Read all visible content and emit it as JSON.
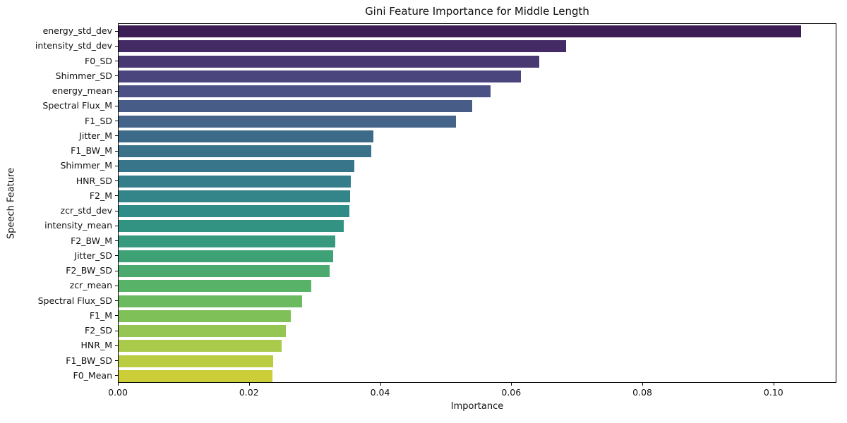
{
  "chart_data": {
    "type": "bar",
    "orientation": "horizontal",
    "title": "Gini Feature Importance for Middle Length",
    "xlabel": "Importance",
    "ylabel": "Speech Feature",
    "xlim": [
      0,
      0.1096
    ],
    "grid": false,
    "legend_position": "none",
    "xticks": [
      0,
      0.02,
      0.04,
      0.06,
      0.08,
      0.1
    ],
    "xtick_labels": [
      "0.00",
      "0.02",
      "0.04",
      "0.06",
      "0.08",
      "0.10"
    ],
    "categories": [
      "energy_std_dev",
      "intensity_std_dev",
      "F0_SD",
      "Shimmer_SD",
      "energy_mean",
      "Spectral Flux_M",
      "F1_SD",
      "Jitter_M",
      "F1_BW_M",
      "Shimmer_M",
      "HNR_SD",
      "F2_M",
      "zcr_std_dev",
      "intensity_mean",
      "F2_BW_M",
      "Jitter_SD",
      "F2_BW_SD",
      "zcr_mean",
      "Spectral Flux_SD",
      "F1_M",
      "F2_SD",
      "HNR_M",
      "F1_BW_SD",
      "F0_Mean"
    ],
    "values": [
      0.1043,
      0.0684,
      0.0643,
      0.0615,
      0.0568,
      0.054,
      0.0516,
      0.0389,
      0.0386,
      0.036,
      0.0355,
      0.0354,
      0.0353,
      0.0344,
      0.0331,
      0.0328,
      0.0323,
      0.0295,
      0.0281,
      0.0263,
      0.0256,
      0.0249,
      0.0236,
      0.0235
    ],
    "bar_colors": [
      "#3d1d55",
      "#452b65",
      "#483972",
      "#4a457c",
      "#4b5184",
      "#485c88",
      "#44648a",
      "#3d6a88",
      "#3a728a",
      "#38758a",
      "#357d8a",
      "#338589",
      "#2f8c87",
      "#329383",
      "#37997e",
      "#3fa277",
      "#4daa6e",
      "#58b369",
      "#6bba60",
      "#80c059",
      "#95c653",
      "#aaca4c",
      "#b9cc42",
      "#cbcd39"
    ],
    "colors": {
      "background": "#ffffff",
      "spine": "#000000",
      "text": "#111111"
    }
  }
}
